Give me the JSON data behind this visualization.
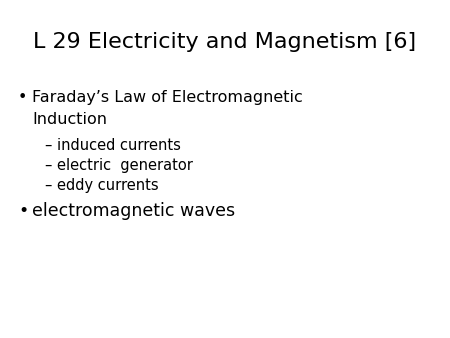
{
  "title": "L 29 Electricity and Magnetism [6]",
  "title_fontsize": 16,
  "background_color": "#ffffff",
  "text_color": "#000000",
  "bullet1_line1": "Faraday’s Law of Electromagnetic",
  "bullet1_line2": "Induction",
  "sub1_text": "– induced currents",
  "sub2_text": "– electric  generator",
  "sub3_text": "– eddy currents",
  "bullet2_text": "electromagnetic waves",
  "title_fs": 16,
  "bullet_fs": 11.5,
  "sub_fs": 10.5,
  "bullet2_fs": 12.5
}
